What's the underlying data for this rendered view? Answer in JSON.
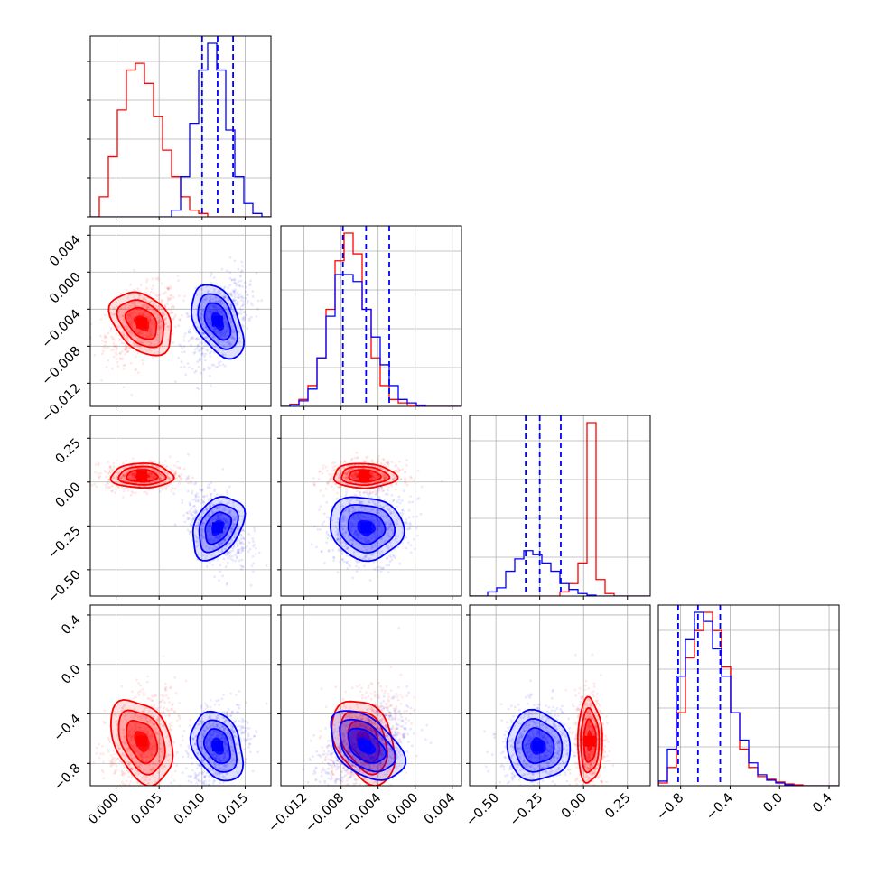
{
  "chart_data": {
    "type": "corner",
    "grid": true,
    "colors": {
      "red": "#ff0000",
      "blue": "#0000ff",
      "grid": "#b0b0b0"
    },
    "series": [
      {
        "color": "#ff0000"
      },
      {
        "color": "#0000ff"
      }
    ],
    "parameters": [
      {
        "range": [
          -0.003,
          0.018
        ],
        "ticks": [
          0.0,
          0.005,
          0.01,
          0.015
        ],
        "tick_labels": [
          "0.000",
          "0.005",
          "0.010",
          "0.015"
        ],
        "quantiles_blue": [
          0.01,
          0.0118,
          0.0136
        ],
        "hist_red": [
          0,
          3,
          9,
          16,
          22,
          23,
          20,
          15,
          10,
          6,
          3,
          1,
          0.5,
          0,
          0,
          0,
          0,
          0,
          0,
          0
        ],
        "hist_blue": [
          0,
          0,
          0,
          0,
          0,
          0,
          0,
          0,
          0,
          1,
          6,
          14,
          22,
          26,
          22,
          13,
          6,
          2,
          0.5,
          0
        ]
      },
      {
        "range": [
          -0.0145,
          0.005
        ],
        "ticks": [
          -0.012,
          -0.008,
          -0.004,
          0.0,
          0.004
        ],
        "tick_labels": [
          "−0.012",
          "−0.008",
          "−0.004",
          "0.000",
          "0.004"
        ],
        "quantiles_blue": [
          -0.0078,
          -0.0053,
          -0.0028
        ],
        "hist_red": [
          0,
          0.3,
          1,
          3,
          7,
          14,
          21,
          25,
          22,
          14,
          7,
          3,
          1,
          0.5,
          0.2,
          0.1,
          0,
          0,
          0,
          0
        ],
        "hist_blue": [
          0,
          0.2,
          0.8,
          2.5,
          7,
          13,
          19,
          19,
          18,
          14,
          10,
          6,
          3,
          1,
          0.5,
          0.2,
          0,
          0,
          0,
          0
        ]
      },
      {
        "range": [
          -0.65,
          0.38
        ],
        "ticks": [
          -0.5,
          -0.25,
          0.0,
          0.25
        ],
        "tick_labels": [
          "−0.50",
          "−0.25",
          "0.00",
          "0.25"
        ],
        "quantiles_blue": [
          -0.33,
          -0.25,
          -0.13
        ],
        "hist_red": [
          0,
          0,
          0,
          0,
          0,
          0,
          0,
          0,
          0,
          0,
          0.5,
          1.5,
          4,
          21,
          2,
          0.3,
          0,
          0,
          0,
          0
        ],
        "hist_blue": [
          0,
          0,
          0.5,
          1,
          3,
          4.5,
          5.5,
          5,
          4,
          3,
          1.5,
          0.8,
          0.3,
          0.1,
          0,
          0,
          0,
          0,
          0,
          0
        ]
      },
      {
        "range": [
          -0.98,
          0.48
        ],
        "ticks": [
          -0.8,
          -0.4,
          0.0,
          0.4
        ],
        "tick_labels": [
          "−0.8",
          "−0.4",
          "0.0",
          "0.4"
        ],
        "quantiles_blue": [
          -0.82,
          -0.66,
          -0.48
        ],
        "hist_red": [
          0.3,
          2,
          8,
          14,
          17,
          19,
          17,
          13,
          8,
          4,
          2,
          1,
          0.7,
          0.4,
          0.2,
          0.1,
          0,
          0,
          0,
          0
        ],
        "hist_blue": [
          0.5,
          4,
          12,
          16,
          19,
          18,
          15,
          12,
          8,
          5,
          2.5,
          1.2,
          0.6,
          0.3,
          0.1,
          0,
          0,
          0,
          0,
          0
        ]
      }
    ],
    "samples": [
      {
        "mean": [
          0.003,
          -0.0055,
          0.035,
          -0.62
        ],
        "sd": [
          0.0018,
          0.0017,
          0.035,
          0.17
        ]
      },
      {
        "mean": [
          0.0118,
          -0.0053,
          -0.26,
          -0.66
        ],
        "sd": [
          0.0015,
          0.002,
          0.09,
          0.14
        ]
      }
    ]
  }
}
